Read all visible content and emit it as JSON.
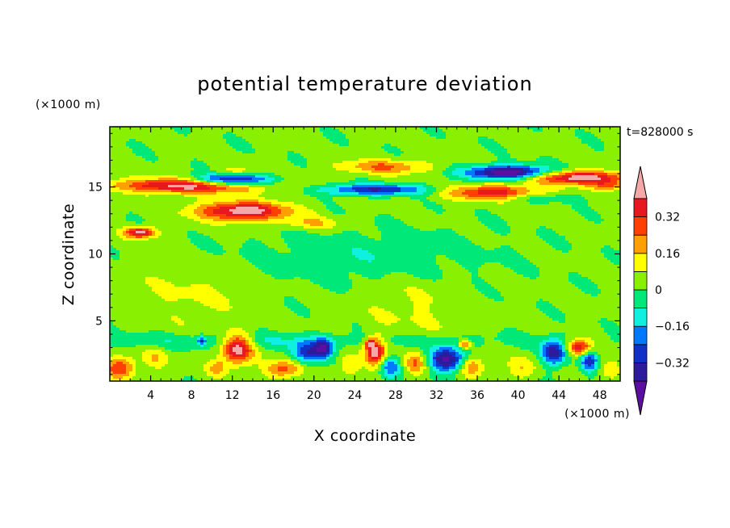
{
  "chart_data": {
    "type": "heatmap",
    "title": "potential temperature deviation",
    "xlabel": "X coordinate",
    "ylabel": "Z coordinate",
    "x_unit_label": "(×1000 m)",
    "z_unit_label": "(×1000 m)",
    "time_label": "t=828000 s",
    "xlim": [
      0,
      50
    ],
    "ylim": [
      0.5,
      19.5
    ],
    "x_ticks": [
      4,
      8,
      12,
      16,
      20,
      24,
      28,
      32,
      36,
      40,
      44,
      48
    ],
    "x_tick_labels": [
      "4",
      "8",
      "12",
      "16",
      "20",
      "24",
      "28",
      "32",
      "36",
      "40",
      "44",
      "48"
    ],
    "y_ticks": [
      5,
      10,
      15
    ],
    "y_tick_labels": [
      "5",
      "10",
      "15"
    ],
    "colorbar": {
      "levels": [
        -0.4,
        -0.32,
        -0.24,
        -0.16,
        -0.08,
        0,
        0.08,
        0.16,
        0.24,
        0.32,
        0.4
      ],
      "labels": [
        "0.32",
        "0.16",
        "0",
        "−0.16",
        "−0.32"
      ],
      "label_values": [
        0.32,
        0.16,
        0,
        -0.16,
        -0.32
      ],
      "colors": [
        "#5a0fa0",
        "#2d1a9c",
        "#1030c8",
        "#0078ff",
        "#10f0e0",
        "#00e878",
        "#88f000",
        "#ffff00",
        "#ffa000",
        "#ff4000",
        "#e81820",
        "#f4a8a8"
      ]
    },
    "background_value": 0.02,
    "features": [
      {
        "x": 8,
        "z": 15.1,
        "sx": 7.5,
        "sz": 0.55,
        "amp": 0.46
      },
      {
        "x": 13,
        "z": 13.2,
        "sx": 4.5,
        "sz": 0.7,
        "amp": 0.45
      },
      {
        "x": 20,
        "z": 12.3,
        "sx": 3,
        "sz": 0.5,
        "amp": 0.14
      },
      {
        "x": 12,
        "z": 15.5,
        "sx": 4,
        "sz": 0.5,
        "amp": -0.48
      },
      {
        "x": 12.5,
        "z": 16.1,
        "sx": 2.5,
        "sz": 0.35,
        "amp": 0.14
      },
      {
        "x": 27,
        "z": 16.5,
        "sx": 4.5,
        "sz": 0.55,
        "amp": 0.22
      },
      {
        "x": 26,
        "z": 14.8,
        "sx": 5.5,
        "sz": 0.4,
        "amp": -0.34
      },
      {
        "x": 39,
        "z": 16.1,
        "sx": 4,
        "sz": 0.5,
        "amp": -0.52
      },
      {
        "x": 37.5,
        "z": 14.6,
        "sx": 4.5,
        "sz": 0.55,
        "amp": 0.36
      },
      {
        "x": 46,
        "z": 15.7,
        "sx": 4.5,
        "sz": 0.5,
        "amp": 0.46
      },
      {
        "x": 49,
        "z": 15.1,
        "sx": 2,
        "sz": 0.4,
        "amp": 0.2
      },
      {
        "x": 42,
        "z": 14.2,
        "sx": 4,
        "sz": 0.35,
        "amp": -0.1
      },
      {
        "x": 3,
        "z": 11.6,
        "sx": 1.5,
        "sz": 0.4,
        "amp": 0.44
      },
      {
        "x": 25,
        "z": 9.8,
        "sx": 12,
        "sz": 2,
        "amp": -0.08
      },
      {
        "x": 8,
        "z": 7,
        "sx": 6,
        "sz": 2.5,
        "amp": 0.07
      },
      {
        "x": 30,
        "z": 6,
        "sx": 5,
        "sz": 2.5,
        "amp": 0.07
      },
      {
        "x": 15,
        "z": 3.5,
        "sx": 25,
        "sz": 0.6,
        "amp": -0.09
      },
      {
        "x": 1,
        "z": 1.5,
        "sx": 1.5,
        "sz": 0.8,
        "amp": 0.3
      },
      {
        "x": 4.5,
        "z": 2.2,
        "sx": 1.2,
        "sz": 0.8,
        "amp": 0.12
      },
      {
        "x": 12.5,
        "z": 2.9,
        "sx": 1.5,
        "sz": 1.1,
        "amp": 0.44
      },
      {
        "x": 10.5,
        "z": 1.5,
        "sx": 1,
        "sz": 0.6,
        "amp": 0.16
      },
      {
        "x": 9,
        "z": 3.5,
        "sx": 0.4,
        "sz": 0.3,
        "amp": -0.28
      },
      {
        "x": 17,
        "z": 1.4,
        "sx": 1.8,
        "sz": 0.7,
        "amp": 0.26
      },
      {
        "x": 19.5,
        "z": 2.6,
        "sx": 1.6,
        "sz": 0.8,
        "amp": -0.34
      },
      {
        "x": 21,
        "z": 3,
        "sx": 0.8,
        "sz": 0.6,
        "amp": -0.3
      },
      {
        "x": 23.5,
        "z": 1.8,
        "sx": 1,
        "sz": 0.8,
        "amp": 0.14
      },
      {
        "x": 26,
        "z": 2.7,
        "sx": 1,
        "sz": 1.1,
        "amp": 0.44
      },
      {
        "x": 27.5,
        "z": 1.6,
        "sx": 1,
        "sz": 0.8,
        "amp": -0.24
      },
      {
        "x": 30,
        "z": 1.8,
        "sx": 1,
        "sz": 0.8,
        "amp": 0.22
      },
      {
        "x": 33,
        "z": 2.1,
        "sx": 1.6,
        "sz": 0.9,
        "amp": -0.46
      },
      {
        "x": 35.5,
        "z": 1.6,
        "sx": 1.2,
        "sz": 0.7,
        "amp": 0.22
      },
      {
        "x": 34.8,
        "z": 3.2,
        "sx": 0.6,
        "sz": 0.3,
        "amp": 0.3
      },
      {
        "x": 40.5,
        "z": 1.5,
        "sx": 1.5,
        "sz": 0.8,
        "amp": 0.14
      },
      {
        "x": 43.5,
        "z": 2.6,
        "sx": 1.2,
        "sz": 0.9,
        "amp": -0.42
      },
      {
        "x": 46,
        "z": 3,
        "sx": 1.2,
        "sz": 0.6,
        "amp": 0.38
      },
      {
        "x": 47,
        "z": 2,
        "sx": 0.8,
        "sz": 0.8,
        "amp": -0.32
      },
      {
        "x": 49,
        "z": 1.4,
        "sx": 1,
        "sz": 0.6,
        "amp": 0.14
      },
      {
        "x": 25.5,
        "z": 3.3,
        "sx": 0.4,
        "sz": 0.3,
        "amp": 0.3
      }
    ]
  }
}
